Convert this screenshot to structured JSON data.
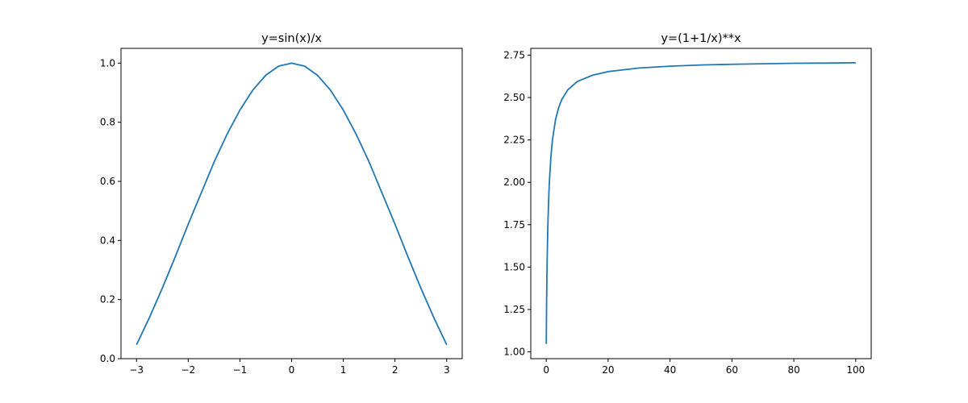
{
  "chart_data": [
    {
      "type": "line",
      "title": "y=sin(x)/x",
      "xlabel": "",
      "ylabel": "",
      "xlim": [
        -3.3,
        3.3
      ],
      "ylim": [
        0.0,
        1.05
      ],
      "xticks": [
        -3,
        -2,
        -1,
        0,
        1,
        2,
        3
      ],
      "xtick_labels": [
        "−3",
        "−2",
        "−1",
        "0",
        "1",
        "2",
        "3"
      ],
      "yticks": [
        0.0,
        0.2,
        0.4,
        0.6,
        0.8,
        1.0
      ],
      "ytick_labels": [
        "0.0",
        "0.2",
        "0.4",
        "0.6",
        "0.8",
        "1.0"
      ],
      "grid": false,
      "color": "#1f77b4",
      "series": [
        {
          "x": [
            -3.0,
            -2.75,
            -2.5,
            -2.25,
            -2.0,
            -1.75,
            -1.5,
            -1.25,
            -1.0,
            -0.75,
            -0.5,
            -0.25,
            0.0,
            0.25,
            0.5,
            0.75,
            1.0,
            1.25,
            1.5,
            1.75,
            2.0,
            2.25,
            2.5,
            2.75,
            3.0
          ],
          "y": [
            0.047,
            0.139,
            0.239,
            0.345,
            0.455,
            0.56,
            0.665,
            0.759,
            0.841,
            0.909,
            0.959,
            0.99,
            1.0,
            0.99,
            0.959,
            0.909,
            0.841,
            0.759,
            0.665,
            0.56,
            0.455,
            0.345,
            0.239,
            0.139,
            0.047
          ]
        }
      ]
    },
    {
      "type": "line",
      "title": "y=(1+1/x)**x",
      "xlabel": "",
      "ylabel": "",
      "xlim": [
        -5,
        105
      ],
      "ylim": [
        0.96,
        2.79
      ],
      "xticks": [
        0,
        20,
        40,
        60,
        80,
        100
      ],
      "xtick_labels": [
        "0",
        "20",
        "40",
        "60",
        "80",
        "100"
      ],
      "yticks": [
        1.0,
        1.25,
        1.5,
        1.75,
        2.0,
        2.25,
        2.5,
        2.75
      ],
      "ytick_labels": [
        "1.00",
        "1.25",
        "1.50",
        "1.75",
        "2.00",
        "2.25",
        "2.50",
        "2.75"
      ],
      "grid": false,
      "color": "#1f77b4",
      "series": [
        {
          "x": [
            0.01,
            0.05,
            0.1,
            0.2,
            0.3,
            0.5,
            0.75,
            1,
            1.5,
            2,
            3,
            4,
            5,
            7,
            10,
            15,
            20,
            30,
            40,
            50,
            60,
            70,
            80,
            90,
            100
          ],
          "y": [
            1.047,
            1.164,
            1.271,
            1.431,
            1.547,
            1.732,
            1.887,
            2.0,
            2.152,
            2.25,
            2.37,
            2.441,
            2.488,
            2.546,
            2.594,
            2.632,
            2.653,
            2.674,
            2.685,
            2.692,
            2.696,
            2.699,
            2.702,
            2.703,
            2.705
          ]
        }
      ]
    }
  ]
}
